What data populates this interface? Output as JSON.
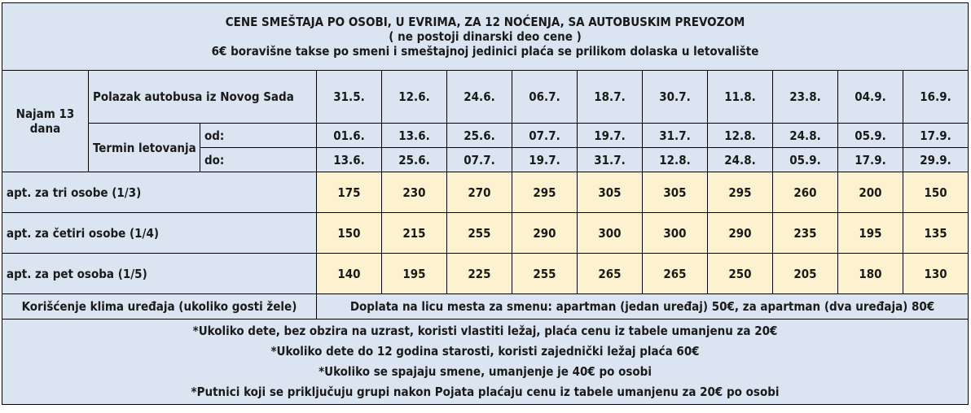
{
  "header": {
    "line1": "CENE SMEŠTAJA PO OSOBI, U EVRIMA, ZA 12 NOĆENJA, SA AUTOBUSKIM PREVOZOM",
    "line2": "( ne postoji dinarski deo cene )",
    "line3": "6€ boravišne takse po smeni i smeštajnoj jedinici plaća se prilikom dolaska u letovalište"
  },
  "table": {
    "najam_label": "Najam 13 dana",
    "polazak_label": "Polazak autobusa iz  Novog Sada",
    "termin_label": "Termin letovanja",
    "od_label": "od:",
    "do_label": "do:",
    "departures": [
      "31.5.",
      "12.6.",
      "24.6.",
      "06.7.",
      "18.7.",
      "30.7.",
      "11.8.",
      "23.8.",
      "04.9.",
      "16.9."
    ],
    "od": [
      "01.6.",
      "13.6.",
      "25.6.",
      "07.7.",
      "19.7.",
      "31.7.",
      "12.8.",
      "24.8.",
      "05.9.",
      "17.9."
    ],
    "do": [
      "13.6.",
      "25.6.",
      "07.7.",
      "19.7.",
      "31.7.",
      "12.8.",
      "24.8.",
      "05.9.",
      "17.9.",
      "29.9."
    ],
    "rows": [
      {
        "label": "apt. za tri osobe (1/3)",
        "prices": [
          "175",
          "230",
          "270",
          "295",
          "305",
          "305",
          "295",
          "260",
          "200",
          "150"
        ]
      },
      {
        "label": "apt. za četiri osobe (1/4)",
        "prices": [
          "150",
          "215",
          "255",
          "290",
          "300",
          "300",
          "290",
          "235",
          "195",
          "135"
        ]
      },
      {
        "label": "apt. za pet osoba (1/5)",
        "prices": [
          "140",
          "195",
          "225",
          "255",
          "265",
          "265",
          "250",
          "205",
          "180",
          "130"
        ]
      }
    ],
    "klima_label": "Korišćenje klima uređaja (ukoliko gosti žele)",
    "klima_text": "Doplata na licu mesta za smenu: apartman (jedan uređaj) 50€, za apartman (dva uređaja) 80€"
  },
  "notes": [
    "*Ukoliko dete, bez obzira na uzrast, koristi vlastiti ležaj, plaća cenu iz tabele umanjenu za 20€",
    "*Ukoliko dete do 12 godina starosti, koristi zajednički ležaj plaća  60€",
    "*Ukoliko se spajaju smene, umanjenje je 40€ po osobi",
    "*Putnici koji se priključuju grupi nakon Pojata plaćaju cenu iz tabele umanjenu za 20€ po osobi"
  ],
  "colors": {
    "blue_bg": "#dbe5f1",
    "cream_bg": "#fdf2cf"
  }
}
